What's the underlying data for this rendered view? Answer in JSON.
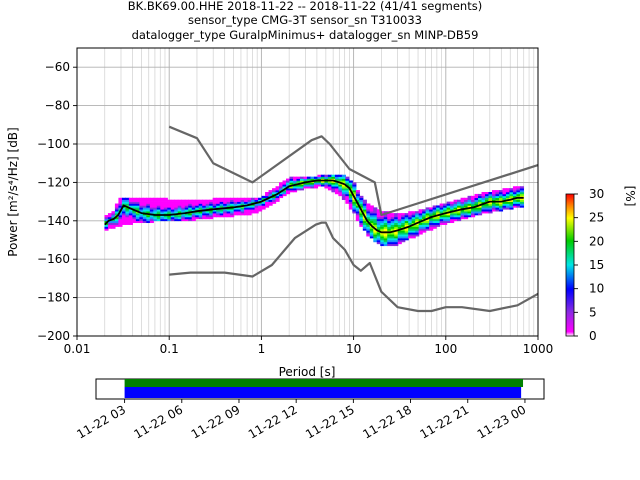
{
  "chart_data": {
    "type": "heatmap",
    "title_lines": [
      "BK.BK69.00.HHE   2018-11-22 -- 2018-11-22  (41/41 segments)",
      "sensor_type CMG-3T sensor_sn T310033",
      "datalogger_type GuralpMinimus+ datalogger_sn MINP-DB59"
    ],
    "xlabel": "Period [s]",
    "ylabel": "Power [m²/s⁴/Hz] [dB]",
    "x_scale": "log",
    "xlim": [
      0.01,
      1000
    ],
    "ylim": [
      -200,
      -50
    ],
    "x_ticks": [
      0.01,
      0.1,
      1,
      10,
      100,
      1000
    ],
    "x_tick_labels": [
      "0.01",
      "0.1",
      "1",
      "10",
      "100",
      "1000"
    ],
    "y_ticks": [
      -200,
      -180,
      -160,
      -140,
      -120,
      -100,
      -80,
      -60
    ],
    "y_tick_labels": [
      "−200",
      "−180",
      "−160",
      "−140",
      "−120",
      "−100",
      "−80",
      "−60"
    ],
    "grid": true,
    "colorbar": {
      "label": "[%]",
      "range": [
        0,
        30
      ],
      "ticks": [
        0,
        5,
        10,
        15,
        20,
        25,
        30
      ],
      "tick_labels": [
        "0",
        "5",
        "10",
        "15",
        "20",
        "25",
        "30"
      ]
    },
    "series": [
      {
        "name": "",
        "style": "black-line",
        "x": [
          0.02,
          0.022,
          0.025,
          0.028,
          0.032,
          0.04,
          0.05,
          0.07,
          0.1,
          0.15,
          0.2,
          0.3,
          0.5,
          0.7,
          1,
          1.5,
          2,
          3,
          4,
          5,
          6,
          7,
          8,
          9,
          10,
          12,
          14,
          16,
          18,
          20,
          25,
          30,
          40,
          50,
          70,
          100,
          150,
          200,
          300,
          400,
          500,
          600,
          700
        ],
        "y": [
          -142,
          -140,
          -139,
          -137,
          -132,
          -134,
          -136,
          -137,
          -137,
          -136,
          -135,
          -134,
          -133,
          -132,
          -130,
          -126,
          -122,
          -120,
          -119,
          -119,
          -119,
          -120,
          -121,
          -123,
          -127,
          -134,
          -140,
          -143,
          -145,
          -146,
          -146,
          -145,
          -143,
          -141,
          -138,
          -136,
          -134,
          -133,
          -130,
          -130,
          -129,
          -128,
          -128
        ]
      },
      {
        "name": "",
        "style": "noise-model-upper",
        "x": [
          0.1,
          0.2,
          0.3,
          0.8,
          3.5,
          4.5,
          5.5,
          9,
          17,
          20,
          1000
        ],
        "y": [
          -91,
          -97,
          -110,
          -120,
          -98,
          -96,
          -100,
          -113,
          -120,
          -137,
          -111
        ]
      },
      {
        "name": "",
        "style": "noise-model-lower",
        "x": [
          0.1,
          0.17,
          0.4,
          0.8,
          1.3,
          2.3,
          3.9,
          4.5,
          5,
          6,
          8,
          10,
          12,
          15,
          20,
          30,
          50,
          70,
          100,
          150,
          300,
          600,
          1000
        ],
        "y": [
          -168,
          -167,
          -167,
          -169,
          -163,
          -149,
          -142,
          -141,
          -141,
          -149,
          -155,
          -163,
          -166,
          -162,
          -177,
          -185,
          -187,
          -187,
          -185,
          -185,
          -187,
          -184,
          -178
        ]
      }
    ],
    "cloud_band": {
      "x": [
        0.02,
        0.025,
        0.03,
        0.04,
        0.05,
        0.07,
        0.1,
        0.2,
        0.3,
        0.5,
        0.8,
        1,
        1.5,
        2,
        3,
        4,
        5,
        6,
        7,
        8,
        10,
        12,
        15,
        20,
        30,
        50,
        100,
        200,
        400,
        700
      ],
      "y_min": [
        -145,
        -143,
        -142,
        -141,
        -141,
        -140,
        -140,
        -139,
        -138,
        -137,
        -136,
        -134,
        -129,
        -125,
        -123,
        -122,
        -122,
        -124,
        -126,
        -129,
        -135,
        -142,
        -148,
        -153,
        -152,
        -147,
        -141,
        -137,
        -134,
        -132
      ],
      "y_max": [
        -138,
        -135,
        -128,
        -128,
        -128,
        -128,
        -129,
        -129,
        -129,
        -128,
        -129,
        -128,
        -122,
        -118,
        -117,
        -117,
        -116,
        -116,
        -116,
        -117,
        -120,
        -127,
        -132,
        -135,
        -137,
        -135,
        -131,
        -127,
        -124,
        -122
      ]
    },
    "time_axis": {
      "tick_labels": [
        "11-22 03",
        "11-22 06",
        "11-22 09",
        "11-22 12",
        "11-22 15",
        "11-22 18",
        "11-22 21",
        "11-23 00"
      ],
      "tick_hours": [
        3,
        6,
        9,
        12,
        15,
        18,
        21,
        24
      ],
      "range_hours": [
        1.5,
        25
      ],
      "segments_green_hours": [
        3.0,
        23.9
      ],
      "segments_blue_hours": [
        3.0,
        23.8
      ],
      "colors": {
        "green": "#008000",
        "blue": "#0000ff"
      }
    }
  }
}
